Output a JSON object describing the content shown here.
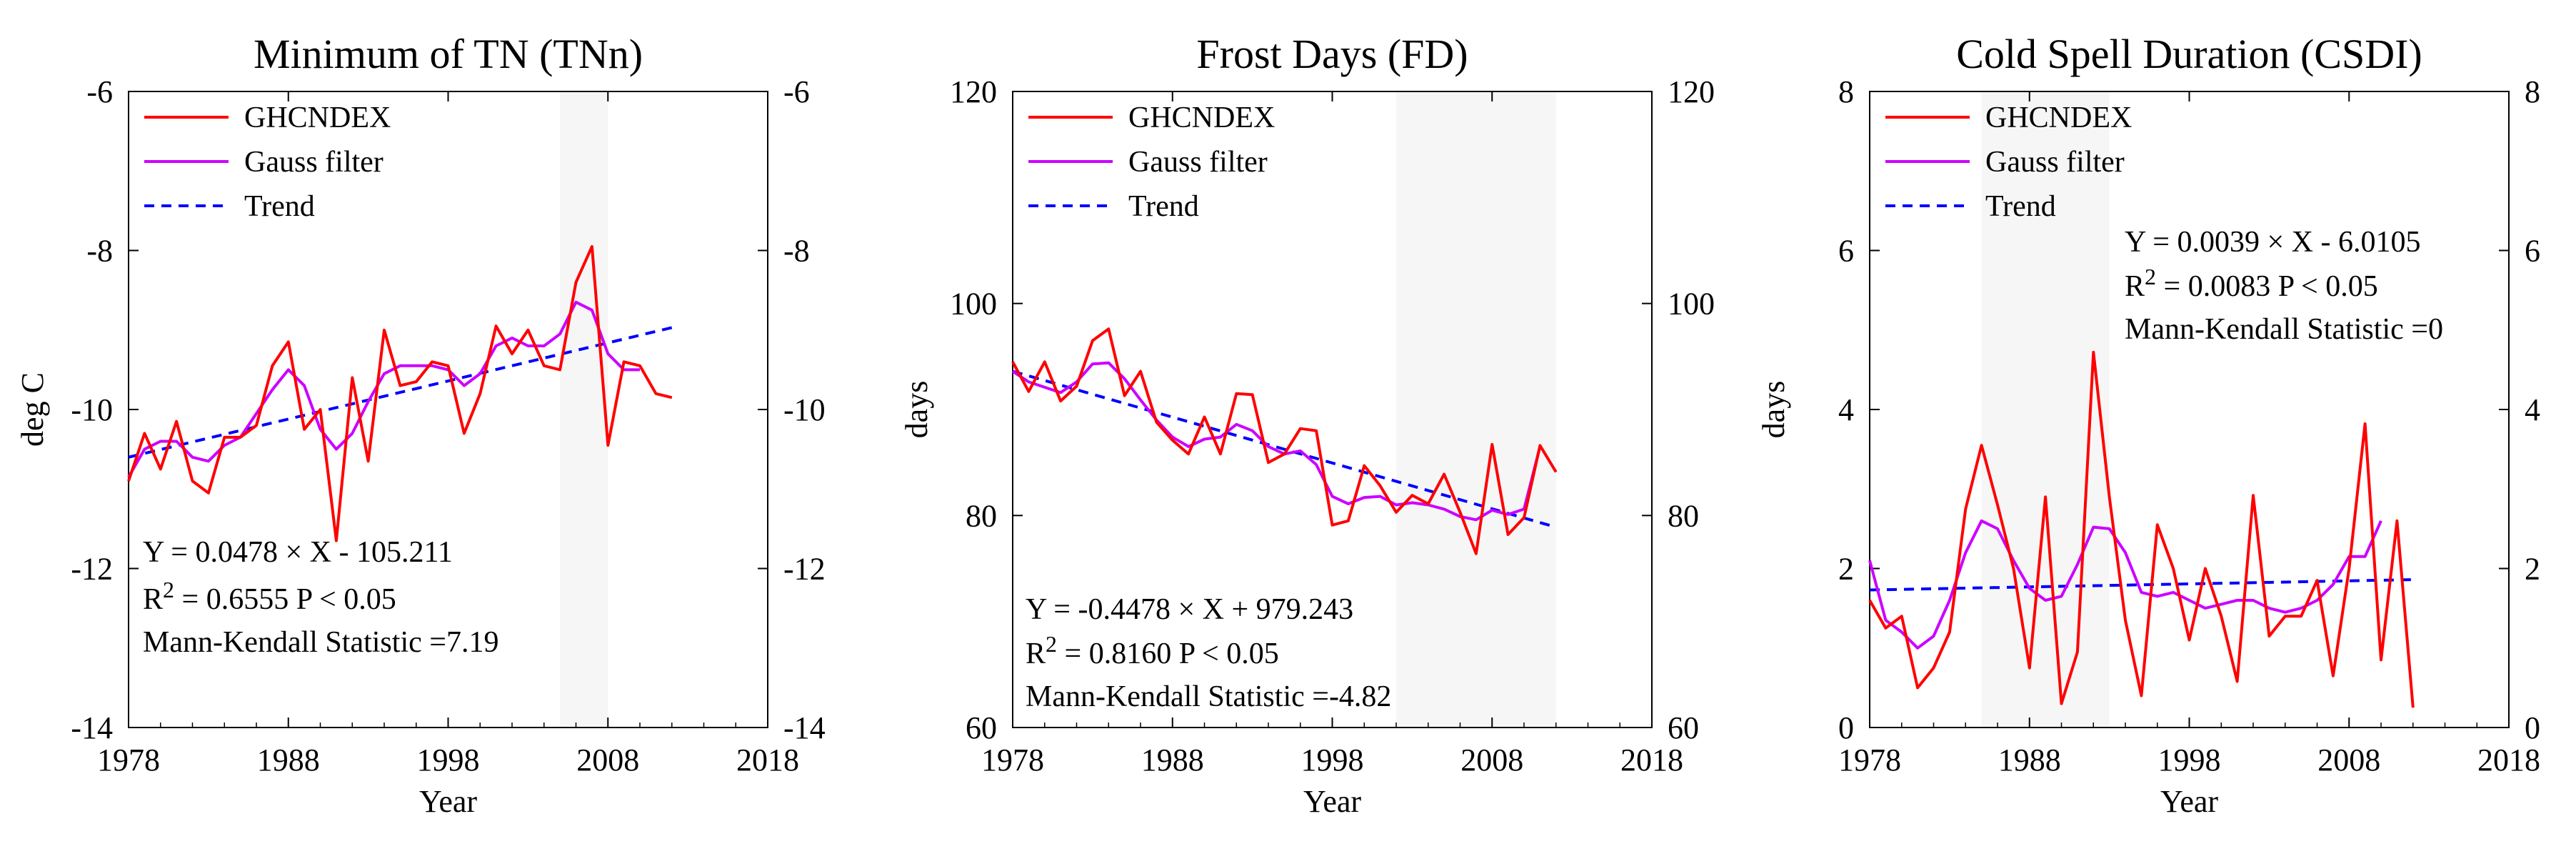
{
  "chart_data": [
    {
      "type": "line",
      "title": "Minimum of TN (TNn)",
      "xlabel": "Year",
      "ylabel": "deg C",
      "xlim": [
        1978,
        2018
      ],
      "ylim": [
        -14,
        -6
      ],
      "xticks": [
        "1978",
        "1988",
        "1998",
        "2008",
        "2018"
      ],
      "yticks": [
        "-14",
        "-12",
        "-10",
        "-8",
        "-6"
      ],
      "x": [
        1978,
        1979,
        1980,
        1981,
        1982,
        1983,
        1984,
        1985,
        1986,
        1987,
        1988,
        1989,
        1990,
        1991,
        1992,
        1993,
        1994,
        1995,
        1996,
        1997,
        1998,
        1999,
        2000,
        2001,
        2002,
        2003,
        2004,
        2005,
        2006,
        2007,
        2008,
        2009,
        2010,
        2011,
        2012
      ],
      "series": [
        {
          "name": "GHCNDEX",
          "color": "#ff0000",
          "style": "solid",
          "values": [
            -10.9,
            -10.3,
            -10.75,
            -10.15,
            -10.9,
            -11.05,
            -10.35,
            -10.35,
            -10.2,
            -9.45,
            -9.15,
            -10.25,
            -10.0,
            -11.65,
            -9.6,
            -10.65,
            -9.0,
            -9.7,
            -9.65,
            -9.4,
            -9.45,
            -10.3,
            -9.8,
            -8.95,
            -9.3,
            -9.0,
            -9.45,
            -9.5,
            -8.4,
            -7.95,
            -10.45,
            -9.4,
            -9.45,
            -9.8,
            -9.85
          ]
        },
        {
          "name": "Gauss filter",
          "color": "#cc00ff",
          "style": "solid",
          "values": [
            -10.85,
            -10.5,
            -10.4,
            -10.4,
            -10.6,
            -10.65,
            -10.45,
            -10.35,
            -10.05,
            -9.75,
            -9.5,
            -9.7,
            -10.25,
            -10.5,
            -10.3,
            -9.9,
            -9.55,
            -9.45,
            -9.45,
            -9.45,
            -9.5,
            -9.7,
            -9.55,
            -9.2,
            -9.1,
            -9.2,
            -9.2,
            -9.05,
            -8.65,
            -8.75,
            -9.3,
            -9.5,
            -9.5,
            null,
            null
          ]
        },
        {
          "name": "Trend",
          "color": "#0000ff",
          "style": "dashed",
          "values_at_ends": {
            "x": [
              1978,
              2012
            ],
            "y": [
              -10.6,
              -8.97
            ]
          }
        }
      ],
      "legend": [
        "GHCNDEX",
        "Gauss filter",
        "Trend"
      ],
      "legend_position": "top-left",
      "annotations": {
        "eq": "Y =  0.0478 × X - 105.211",
        "r2_base": "R",
        "r2_sup": "2",
        "r2_rest": " = 0.6555   P < 0.05",
        "mk": "Mann-Kendall Statistic =7.19"
      },
      "annotation_position": "bottom-left"
    },
    {
      "type": "line",
      "title": "Frost Days (FD)",
      "xlabel": "Year",
      "ylabel": "days",
      "xlim": [
        1978,
        2018
      ],
      "ylim": [
        60,
        120
      ],
      "xticks": [
        "1978",
        "1988",
        "1998",
        "2008",
        "2018"
      ],
      "yticks": [
        "60",
        "80",
        "100",
        "120"
      ],
      "x": [
        1978,
        1979,
        1980,
        1981,
        1982,
        1983,
        1984,
        1985,
        1986,
        1987,
        1988,
        1989,
        1990,
        1991,
        1992,
        1993,
        1994,
        1995,
        1996,
        1997,
        1998,
        1999,
        2000,
        2001,
        2002,
        2003,
        2004,
        2005,
        2006,
        2007,
        2008,
        2009,
        2010,
        2011,
        2012
      ],
      "series": [
        {
          "name": "GHCNDEX",
          "color": "#ff0000",
          "style": "solid",
          "values": [
            94.5,
            91.7,
            94.5,
            90.8,
            92.2,
            96.5,
            97.6,
            91.3,
            93.6,
            88.8,
            87.1,
            85.8,
            89.3,
            85.8,
            91.5,
            91.4,
            85.0,
            85.8,
            88.2,
            88.0,
            79.1,
            79.5,
            84.7,
            82.8,
            80.3,
            81.9,
            81.1,
            83.9,
            80.3,
            76.4,
            86.7,
            78.2,
            79.8,
            86.6,
            84.1
          ]
        },
        {
          "name": "Gauss filter",
          "color": "#cc00ff",
          "style": "solid",
          "values": [
            93.6,
            92.6,
            92.1,
            91.6,
            92.6,
            94.3,
            94.4,
            92.9,
            90.9,
            89.0,
            87.4,
            86.5,
            87.2,
            87.4,
            88.6,
            88.0,
            86.5,
            85.8,
            86.1,
            84.8,
            81.8,
            81.1,
            81.7,
            81.8,
            81.0,
            81.2,
            81.0,
            80.6,
            79.9,
            79.6,
            80.5,
            80.1,
            80.6,
            86.5,
            null
          ]
        },
        {
          "name": "Trend",
          "color": "#0000ff",
          "style": "dashed",
          "values_at_ends": {
            "x": [
              1978,
              2012
            ],
            "y": [
              93.6,
              78.9
            ]
          }
        }
      ],
      "legend": [
        "GHCNDEX",
        "Gauss filter",
        "Trend"
      ],
      "legend_position": "top-left",
      "annotations": {
        "eq": "Y = -0.4478 × X + 979.243",
        "r2_base": "R",
        "r2_sup": "2",
        "r2_rest": " = 0.8160   P < 0.05",
        "mk": "Mann-Kendall Statistic =-4.82"
      },
      "annotation_position": "bottom-left"
    },
    {
      "type": "line",
      "title": "Cold Spell Duration (CSDI)",
      "xlabel": "Year",
      "ylabel": "days",
      "xlim": [
        1978,
        2018
      ],
      "ylim": [
        0,
        8
      ],
      "xticks": [
        "1978",
        "1988",
        "1998",
        "2008",
        "2018"
      ],
      "yticks": [
        "0",
        "2",
        "4",
        "6",
        "8"
      ],
      "x": [
        1978,
        1979,
        1980,
        1981,
        1982,
        1983,
        1984,
        1985,
        1986,
        1987,
        1988,
        1989,
        1990,
        1991,
        1992,
        1993,
        1994,
        1995,
        1996,
        1997,
        1998,
        1999,
        2000,
        2001,
        2002,
        2003,
        2004,
        2005,
        2006,
        2007,
        2008,
        2009,
        2010,
        2011,
        2012
      ],
      "series": [
        {
          "name": "GHCNDEX",
          "color": "#ff0000",
          "style": "solid",
          "values": [
            1.6,
            1.25,
            1.4,
            0.5,
            0.75,
            1.2,
            2.75,
            3.55,
            2.8,
            2.0,
            0.75,
            2.9,
            0.3,
            0.95,
            4.72,
            2.9,
            1.35,
            0.4,
            2.55,
            2.0,
            1.1,
            2.0,
            1.4,
            0.58,
            2.92,
            1.15,
            1.4,
            1.4,
            1.85,
            0.65,
            2.0,
            3.82,
            0.85,
            2.6,
            0.25
          ]
        },
        {
          "name": "Gauss filter",
          "color": "#cc00ff",
          "style": "solid",
          "values": [
            2.1,
            1.35,
            1.2,
            1.0,
            1.15,
            1.6,
            2.2,
            2.6,
            2.5,
            2.1,
            1.75,
            1.6,
            1.65,
            2.05,
            2.52,
            2.5,
            2.2,
            1.7,
            1.65,
            1.7,
            1.6,
            1.5,
            1.55,
            1.6,
            1.6,
            1.5,
            1.45,
            1.5,
            1.6,
            1.8,
            2.15,
            2.15,
            2.6,
            null,
            null
          ]
        },
        {
          "name": "Trend",
          "color": "#0000ff",
          "style": "dashed",
          "values_at_ends": {
            "x": [
              1978,
              2012
            ],
            "y": [
              1.73,
              1.86
            ]
          }
        }
      ],
      "legend": [
        "GHCNDEX",
        "Gauss filter",
        "Trend"
      ],
      "legend_position": "top-left",
      "annotations": {
        "eq": "Y = 0.0039 × X - 6.0105",
        "r2_base": "R",
        "r2_sup": "2",
        "r2_rest": " = 0.0083   P < 0.05",
        "mk": "Mann-Kendall Statistic =0"
      },
      "annotation_position": "top-right"
    }
  ]
}
